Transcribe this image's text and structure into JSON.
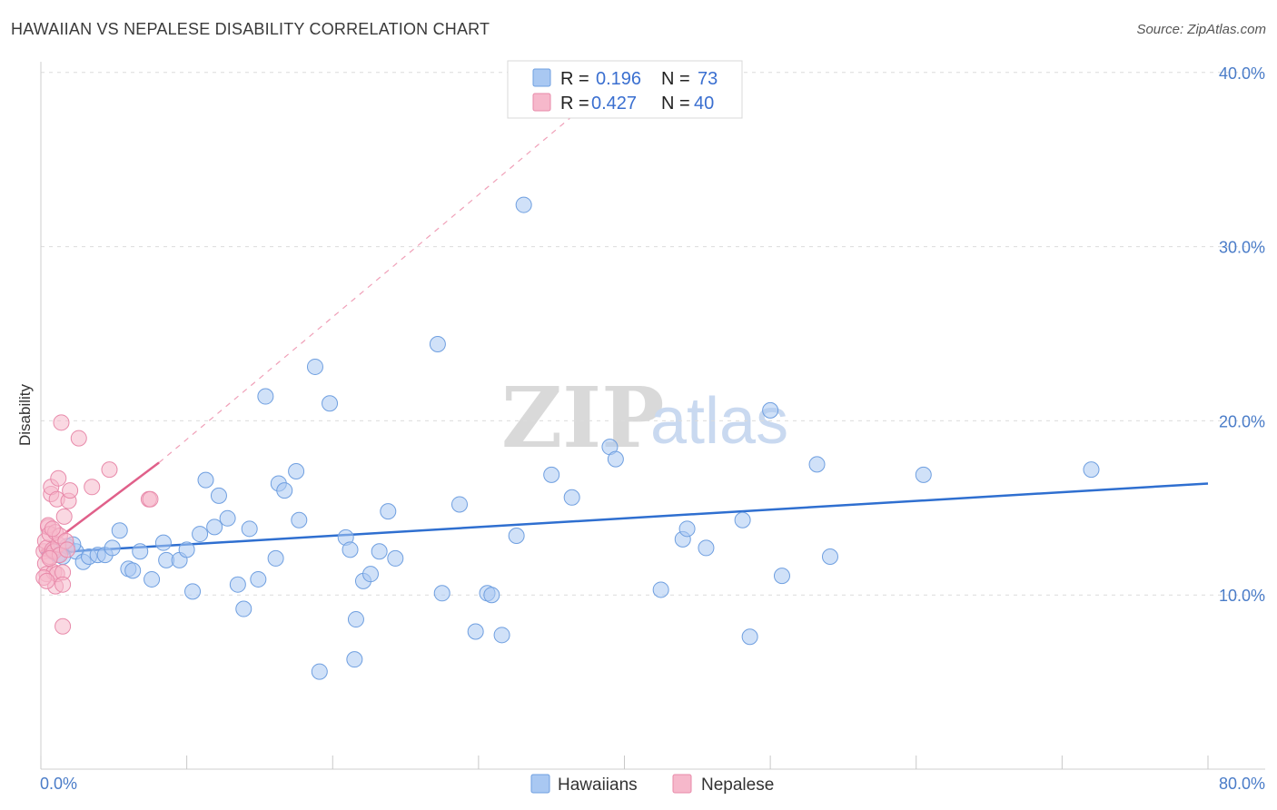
{
  "header": {
    "title": "HAWAIIAN VS NEPALESE DISABILITY CORRELATION CHART",
    "source": "Source: ZipAtlas.com"
  },
  "watermark": {
    "zip": "ZIP",
    "atlas": "atlas"
  },
  "legend": {
    "rows": [
      {
        "r_label": "R =",
        "r_value": "0.196",
        "n_label": "N =",
        "n_value": "73",
        "color": "#a9c8f2"
      },
      {
        "r_label": "R =",
        "r_value": "0.427",
        "n_label": "N =",
        "n_value": "40",
        "color": "#f6b8cb"
      }
    ]
  },
  "chart_data": {
    "type": "scatter",
    "title": "HAWAIIAN VS NEPALESE DISABILITY CORRELATION CHART",
    "xlabel": "",
    "ylabel": "Disability",
    "xlim": [
      0,
      80
    ],
    "ylim": [
      0,
      40
    ],
    "x_tick_labels": [
      "0.0%",
      "80.0%"
    ],
    "y_ticks": [
      10,
      20,
      30,
      40
    ],
    "y_tick_labels": [
      "10.0%",
      "20.0%",
      "30.0%",
      "40.0%"
    ],
    "series": [
      {
        "name": "Hawaiians",
        "color": "#a9c8f2",
        "stroke": "#6f9fe0",
        "line_color": "#2f6fd0",
        "trend": {
          "x0": 0,
          "y0": 12.4,
          "x1": 80,
          "y1": 16.4
        },
        "points": [
          [
            0.8,
            12.5
          ],
          [
            1.2,
            12.3
          ],
          [
            1.8,
            12.8
          ],
          [
            2.4,
            12.5
          ],
          [
            2.9,
            11.9
          ],
          [
            3.3,
            12.2
          ],
          [
            3.9,
            12.3
          ],
          [
            4.4,
            12.3
          ],
          [
            4.9,
            12.7
          ],
          [
            5.4,
            13.7
          ],
          [
            6.0,
            11.5
          ],
          [
            6.3,
            11.4
          ],
          [
            6.8,
            12.5
          ],
          [
            7.6,
            10.9
          ],
          [
            8.4,
            13.0
          ],
          [
            8.6,
            12.0
          ],
          [
            9.5,
            12.0
          ],
          [
            10.0,
            12.6
          ],
          [
            10.4,
            10.2
          ],
          [
            10.9,
            13.5
          ],
          [
            11.3,
            16.6
          ],
          [
            11.9,
            13.9
          ],
          [
            12.2,
            15.7
          ],
          [
            12.8,
            14.4
          ],
          [
            13.5,
            10.6
          ],
          [
            13.9,
            9.2
          ],
          [
            14.3,
            13.8
          ],
          [
            14.9,
            10.9
          ],
          [
            15.4,
            21.4
          ],
          [
            16.1,
            12.1
          ],
          [
            16.3,
            16.4
          ],
          [
            16.7,
            16.0
          ],
          [
            17.5,
            17.1
          ],
          [
            17.7,
            14.3
          ],
          [
            18.8,
            23.1
          ],
          [
            19.1,
            5.6
          ],
          [
            19.8,
            21.0
          ],
          [
            20.9,
            13.3
          ],
          [
            21.2,
            12.6
          ],
          [
            21.5,
            6.3
          ],
          [
            21.6,
            8.6
          ],
          [
            22.1,
            10.8
          ],
          [
            22.6,
            11.2
          ],
          [
            23.2,
            12.5
          ],
          [
            23.8,
            14.8
          ],
          [
            24.3,
            12.1
          ],
          [
            27.2,
            24.4
          ],
          [
            27.5,
            10.1
          ],
          [
            28.7,
            15.2
          ],
          [
            29.8,
            7.9
          ],
          [
            30.6,
            10.1
          ],
          [
            30.9,
            10.0
          ],
          [
            31.6,
            7.7
          ],
          [
            32.6,
            13.4
          ],
          [
            33.1,
            32.4
          ],
          [
            35.0,
            16.9
          ],
          [
            36.4,
            15.6
          ],
          [
            39.0,
            18.5
          ],
          [
            39.4,
            17.8
          ],
          [
            42.5,
            10.3
          ],
          [
            44.0,
            13.2
          ],
          [
            44.3,
            13.8
          ],
          [
            45.6,
            12.7
          ],
          [
            48.1,
            14.3
          ],
          [
            48.6,
            7.6
          ],
          [
            50.0,
            20.6
          ],
          [
            50.8,
            11.1
          ],
          [
            53.2,
            17.5
          ],
          [
            54.1,
            12.2
          ],
          [
            60.5,
            16.9
          ],
          [
            72.0,
            17.2
          ],
          [
            1.5,
            12.2
          ],
          [
            2.2,
            12.9
          ]
        ]
      },
      {
        "name": "Nepalese",
        "color": "#f6b8cb",
        "stroke": "#e88aaa",
        "line_color": "#e0608a",
        "trend": {
          "x0": 0,
          "y0": 12.5,
          "x1": 8.1,
          "y1": 17.6
        },
        "trend_dashed": {
          "x0": 8.1,
          "y0": 17.6,
          "x1": 40,
          "y1": 40
        },
        "points": [
          [
            0.2,
            12.5
          ],
          [
            0.3,
            13.1
          ],
          [
            0.3,
            11.8
          ],
          [
            0.4,
            11.2
          ],
          [
            0.4,
            12.7
          ],
          [
            0.5,
            13.9
          ],
          [
            0.5,
            14.0
          ],
          [
            0.6,
            12.2
          ],
          [
            0.6,
            13.5
          ],
          [
            0.7,
            15.8
          ],
          [
            0.7,
            16.2
          ],
          [
            0.8,
            12.6
          ],
          [
            0.9,
            12.5
          ],
          [
            0.9,
            11.3
          ],
          [
            1.0,
            10.5
          ],
          [
            1.0,
            13.6
          ],
          [
            1.1,
            15.5
          ],
          [
            1.1,
            11.2
          ],
          [
            1.2,
            12.9
          ],
          [
            1.2,
            16.7
          ],
          [
            1.3,
            13.4
          ],
          [
            1.3,
            12.3
          ],
          [
            1.4,
            19.9
          ],
          [
            1.5,
            11.3
          ],
          [
            1.5,
            10.6
          ],
          [
            1.5,
            8.2
          ],
          [
            1.6,
            14.5
          ],
          [
            1.7,
            13.1
          ],
          [
            1.8,
            12.6
          ],
          [
            1.9,
            15.4
          ],
          [
            2.0,
            16.0
          ],
          [
            2.6,
            19.0
          ],
          [
            3.5,
            16.2
          ],
          [
            4.7,
            17.2
          ],
          [
            7.4,
            15.5
          ],
          [
            7.5,
            15.5
          ],
          [
            0.2,
            11.0
          ],
          [
            0.4,
            10.8
          ],
          [
            0.6,
            12.1
          ],
          [
            0.8,
            13.8
          ]
        ]
      }
    ]
  },
  "bottom_legend": [
    {
      "label": "Hawaiians",
      "color": "#a9c8f2",
      "stroke": "#6f9fe0"
    },
    {
      "label": "Nepalese",
      "color": "#f6b8cb",
      "stroke": "#e88aaa"
    }
  ]
}
